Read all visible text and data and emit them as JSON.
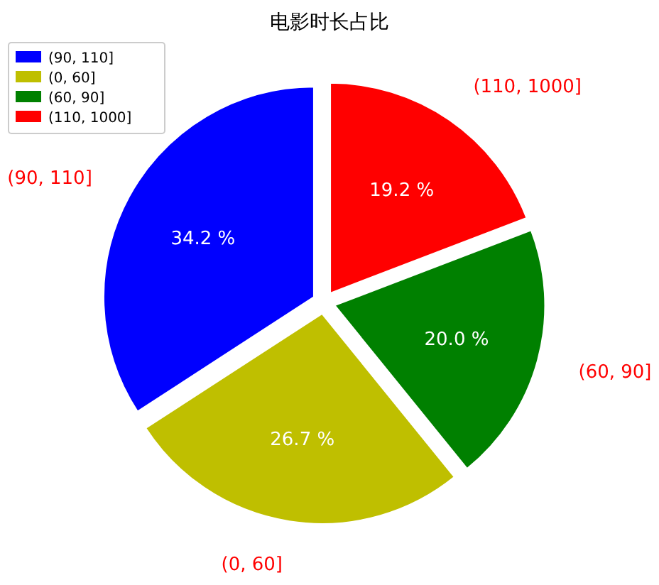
{
  "chart_data": {
    "type": "pie",
    "title": "电影时长占比",
    "categories": [
      "(90, 110]",
      "(0, 60]",
      "(60, 90]",
      "(110, 1000]"
    ],
    "values": [
      34.2,
      26.7,
      20.0,
      19.2
    ],
    "colors": [
      "#0000ff",
      "#bfbf00",
      "#008000",
      "#ff0000"
    ],
    "value_labels": [
      "34.2 %",
      "26.7 %",
      "20.0 %",
      "19.2 %"
    ],
    "legend": "top left"
  }
}
